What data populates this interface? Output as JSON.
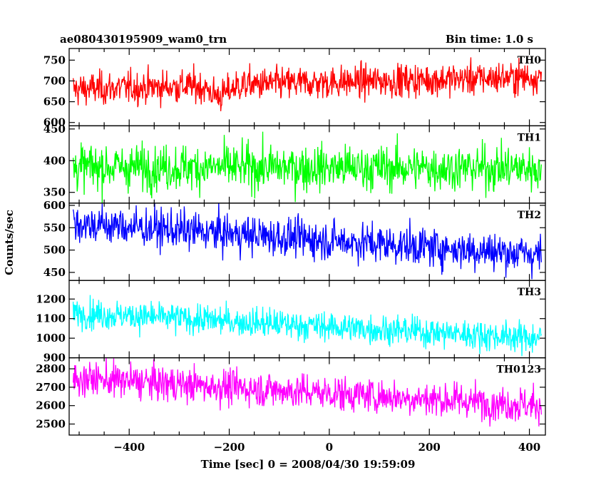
{
  "header": {
    "title": "ae080430195909_wam0_trn",
    "bin_time": "Bin time: 1.0 s"
  },
  "axes": {
    "ylabel": "Counts/sec",
    "xlabel": "Time [sec] 0 = 2008/04/30 19:59:09",
    "x_ticks": [
      "−400",
      "−200",
      "0",
      "200",
      "400"
    ]
  },
  "chart_data": {
    "type": "line",
    "x_range": [
      -512,
      424
    ],
    "xlim": [
      -520,
      432
    ],
    "x_ticks": [
      -400,
      -200,
      0,
      200,
      400
    ],
    "grid": false,
    "panels": [
      {
        "name": "TH0",
        "color": "#ff0000",
        "ylim": [
          592,
          778
        ],
        "y_ticks": [
          600,
          650,
          700,
          750
        ],
        "level_start": 680,
        "level_end": 710,
        "noise_std": 20,
        "dip_at": -220,
        "dip_depth": 25
      },
      {
        "name": "TH1",
        "color": "#00ff00",
        "ylim": [
          333,
          455
        ],
        "y_ticks": [
          350,
          400,
          450
        ],
        "level_start": 390,
        "level_end": 388,
        "noise_std": 18
      },
      {
        "name": "TH2",
        "color": "#0000ff",
        "ylim": [
          432,
          605
        ],
        "y_ticks": [
          450,
          500,
          550,
          600
        ],
        "level_start": 560,
        "level_end": 490,
        "noise_std": 22
      },
      {
        "name": "TH3",
        "color": "#00ffff",
        "ylim": [
          900,
          1295
        ],
        "y_ticks": [
          900,
          1000,
          1100,
          1200
        ],
        "level_start": 1130,
        "level_end": 1000,
        "noise_std": 38
      },
      {
        "name": "TH0123",
        "color": "#ff00ff",
        "ylim": [
          2440,
          2860
        ],
        "y_ticks": [
          2500,
          2600,
          2700,
          2800
        ],
        "level_start": 2750,
        "level_end": 2600,
        "noise_std": 48
      }
    ]
  }
}
